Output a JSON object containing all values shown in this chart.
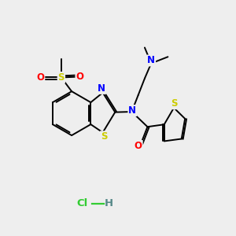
{
  "bg_color": "#eeeeee",
  "fig_size": [
    3.0,
    3.0
  ],
  "dpi": 100,
  "bond_color": "#000000",
  "bond_lw": 1.4,
  "dbo": 0.055,
  "atom_colors": {
    "N": "#0000ff",
    "S": "#cccc00",
    "O": "#ff0000",
    "C": "#000000"
  },
  "fs": 8.5,
  "fs_hcl": 9.5,
  "hcl_color": "#33cc33",
  "h_color": "#558888"
}
